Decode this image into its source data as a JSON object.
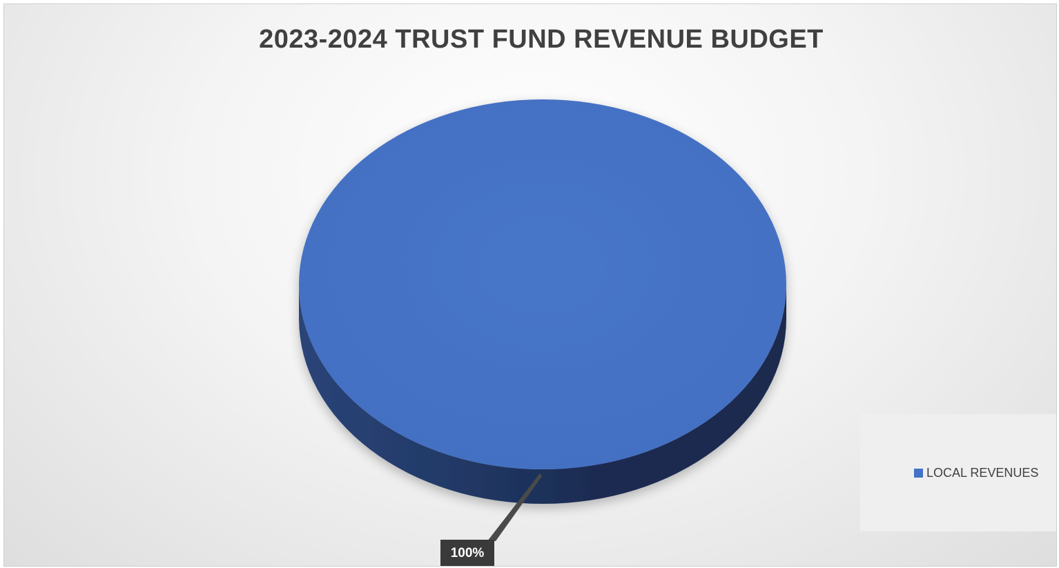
{
  "chart_data": {
    "type": "pie",
    "title": "2023-2024 TRUST FUND REVENUE BUDGET",
    "categories": [
      "LOCAL REVENUES"
    ],
    "values": [
      100
    ],
    "data_labels": [
      "100%"
    ],
    "legend_position": "right",
    "three_d": true,
    "colors": {
      "slice_top": "#4472C4",
      "slice_side_dark": "#1c2c50",
      "slice_side_mid": "#2a4478",
      "data_label_bg": "#3a3a3a",
      "title": "#404040"
    }
  }
}
